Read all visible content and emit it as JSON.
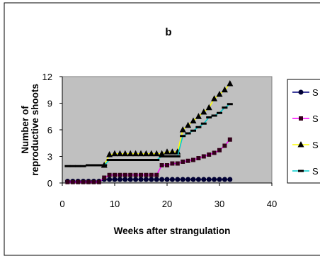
{
  "chart_data": {
    "type": "line",
    "title": "b",
    "xlabel": "Weeks after strangulation",
    "ylabel_lines": [
      "Number of",
      "reproductive shoots"
    ],
    "xlim": [
      0,
      40
    ],
    "ylim": [
      0,
      12
    ],
    "xticks": [
      "0",
      "10",
      "20",
      "30",
      "40"
    ],
    "yticks": [
      "0",
      "3",
      "6",
      "9",
      "12"
    ],
    "grid": false,
    "plot_background": "#c0c0c0",
    "legend_position": "right",
    "series": [
      {
        "name": "S",
        "color": "#00007f",
        "marker": "circle",
        "x": [
          1,
          2,
          3,
          4,
          5,
          6,
          7,
          8,
          9,
          10,
          11,
          12,
          13,
          14,
          15,
          16,
          17,
          18,
          19,
          20,
          21,
          22,
          23,
          24,
          25,
          26,
          27,
          28,
          29,
          30,
          31,
          32
        ],
        "y": [
          0.2,
          0.2,
          0.2,
          0.2,
          0.2,
          0.2,
          0.2,
          0.4,
          0.4,
          0.4,
          0.4,
          0.4,
          0.4,
          0.4,
          0.4,
          0.4,
          0.4,
          0.4,
          0.4,
          0.4,
          0.4,
          0.4,
          0.4,
          0.4,
          0.4,
          0.4,
          0.4,
          0.4,
          0.4,
          0.4,
          0.4,
          0.4
        ]
      },
      {
        "name": "S",
        "color": "#ff00ff",
        "marker": "square",
        "x": [
          1,
          2,
          3,
          4,
          5,
          6,
          7,
          8,
          9,
          10,
          11,
          12,
          13,
          14,
          15,
          16,
          17,
          18,
          19,
          20,
          21,
          22,
          23,
          24,
          25,
          26,
          27,
          28,
          29,
          30,
          31,
          32
        ],
        "y": [
          0.1,
          0.1,
          0.1,
          0.1,
          0.1,
          0.1,
          0.1,
          0.6,
          0.9,
          0.9,
          0.9,
          0.9,
          0.9,
          0.9,
          0.9,
          0.9,
          0.9,
          0.9,
          2.0,
          2.0,
          2.2,
          2.2,
          2.4,
          2.5,
          2.6,
          2.8,
          3.0,
          3.2,
          3.4,
          3.7,
          4.2,
          4.9
        ]
      },
      {
        "name": "S",
        "color": "#ffff00",
        "marker": "triangle",
        "x": [
          8,
          9,
          10,
          11,
          12,
          13,
          14,
          15,
          16,
          17,
          18,
          19,
          20,
          21,
          22,
          23,
          24,
          25,
          26,
          27,
          28,
          29,
          30,
          31,
          32
        ],
        "y": [
          2.0,
          3.2,
          3.3,
          3.3,
          3.3,
          3.3,
          3.3,
          3.3,
          3.3,
          3.3,
          3.3,
          3.3,
          3.5,
          3.5,
          3.5,
          6.0,
          6.5,
          7.0,
          7.5,
          8.0,
          8.5,
          9.5,
          10.0,
          10.5,
          11.2
        ]
      },
      {
        "name": "S",
        "color": "#00cccc",
        "marker": "dash",
        "x": [
          1,
          2,
          3,
          4,
          5,
          6,
          7,
          8,
          9,
          10,
          11,
          12,
          13,
          14,
          15,
          16,
          17,
          18,
          19,
          20,
          21,
          22,
          23,
          24,
          25,
          26,
          27,
          28,
          29,
          30,
          31,
          32
        ],
        "y": [
          1.9,
          1.9,
          1.9,
          1.9,
          2.0,
          2.0,
          2.0,
          2.0,
          2.6,
          2.6,
          2.6,
          2.6,
          2.6,
          2.6,
          2.6,
          2.6,
          2.6,
          2.6,
          3.0,
          3.0,
          3.0,
          3.0,
          5.3,
          5.6,
          5.9,
          6.3,
          6.7,
          7.4,
          7.6,
          7.9,
          8.5,
          8.9
        ]
      }
    ]
  }
}
